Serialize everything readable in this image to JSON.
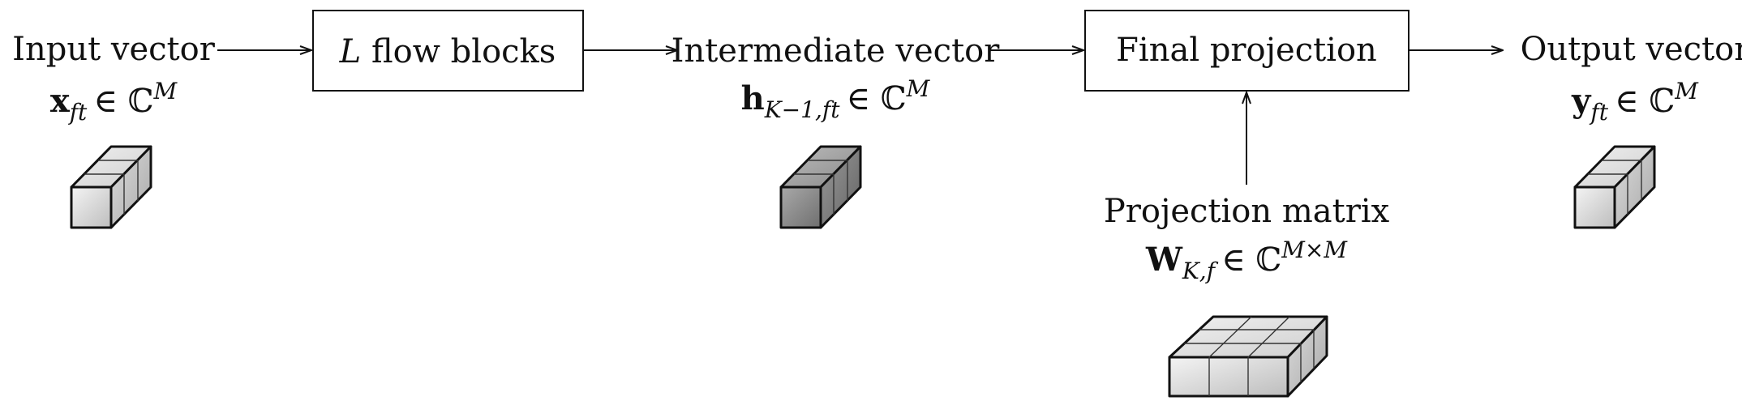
{
  "nodes": {
    "input": {
      "label": "Input vector",
      "symbol": "x",
      "subscript": "ft",
      "set": "∈ ℂ",
      "superscript": "M"
    },
    "flow_blocks": {
      "label_var": "L",
      "label_text": " flow blocks"
    },
    "intermediate": {
      "label": "Intermediate vector",
      "symbol": "h",
      "subscript": "K−1,ft",
      "set": "∈ ℂ",
      "superscript": "M"
    },
    "final_projection": {
      "label": "Final projection"
    },
    "output": {
      "label": "Output vector",
      "symbol": "y",
      "subscript": "ft",
      "set": "∈ ℂ",
      "superscript": "M"
    },
    "projection_matrix": {
      "label": "Projection matrix",
      "symbol": "W",
      "subscript": "K,f",
      "set": "∈ ℂ",
      "superscript": "M×M"
    }
  },
  "colors": {
    "stroke": "#111111",
    "cube_light_front": "#d6d6d6",
    "cube_light_top": "#ececec",
    "cube_light_side": "#c2c2c2",
    "cube_dark_front": "#8f8f8f",
    "cube_dark_top": "#b3b3b3",
    "cube_dark_side": "#7a7a7a"
  }
}
